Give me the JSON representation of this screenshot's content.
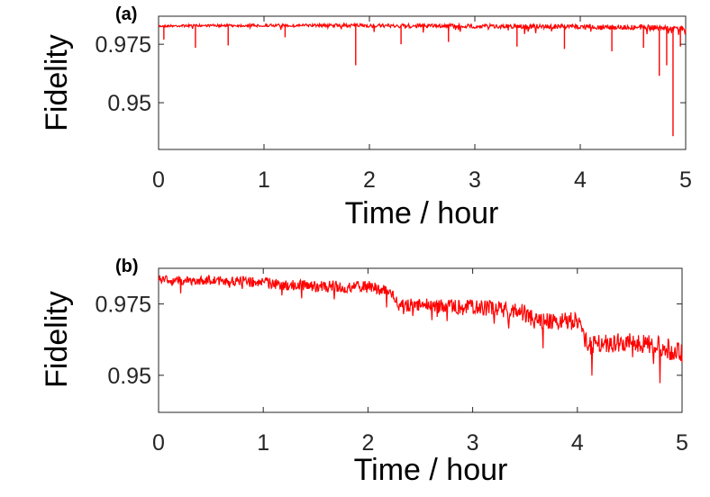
{
  "chart_data": [
    {
      "type": "line",
      "panel_label": "(a)",
      "xlabel": "Time / hour",
      "ylabel": "Fidelity",
      "xlim": [
        0,
        5
      ],
      "ylim": [
        0.93,
        0.987
      ],
      "xticks": [
        0,
        1,
        2,
        3,
        4,
        5
      ],
      "xtick_labels": [
        "0",
        "1",
        "2",
        "3",
        "4",
        "5"
      ],
      "yticks": [
        0.95,
        0.975
      ],
      "ytick_labels": [
        "0.95",
        "0.975"
      ],
      "grid": false,
      "color": "#ff0000",
      "series": [
        {
          "name": "",
          "x": [
            0,
            0.25,
            0.5,
            0.75,
            1,
            1.25,
            1.5,
            1.75,
            2,
            2.25,
            2.5,
            2.75,
            3,
            3.25,
            3.5,
            3.75,
            4,
            4.25,
            4.5,
            4.75,
            5
          ],
          "values": [
            0.983,
            0.9832,
            0.9833,
            0.9833,
            0.9834,
            0.9834,
            0.9834,
            0.9834,
            0.9834,
            0.9833,
            0.9833,
            0.9833,
            0.9832,
            0.9832,
            0.9831,
            0.9831,
            0.983,
            0.9829,
            0.9828,
            0.9826,
            0.9822
          ]
        }
      ],
      "dips": [
        {
          "x": 0.05,
          "y": 0.977
        },
        {
          "x": 0.35,
          "y": 0.9735
        },
        {
          "x": 0.66,
          "y": 0.9745
        },
        {
          "x": 1.2,
          "y": 0.978
        },
        {
          "x": 1.87,
          "y": 0.966
        },
        {
          "x": 2.3,
          "y": 0.975
        },
        {
          "x": 2.75,
          "y": 0.976
        },
        {
          "x": 3.4,
          "y": 0.974
        },
        {
          "x": 3.85,
          "y": 0.973
        },
        {
          "x": 4.3,
          "y": 0.972
        },
        {
          "x": 4.6,
          "y": 0.9735
        },
        {
          "x": 4.75,
          "y": 0.9615
        },
        {
          "x": 4.82,
          "y": 0.966
        },
        {
          "x": 4.88,
          "y": 0.9357
        },
        {
          "x": 4.95,
          "y": 0.974
        }
      ]
    },
    {
      "type": "line",
      "panel_label": "(b)",
      "xlabel": "Time / hour",
      "ylabel": "Fidelity",
      "xlim": [
        0,
        5
      ],
      "ylim": [
        0.937,
        0.9875
      ],
      "xticks": [
        0,
        1,
        2,
        3,
        4,
        5
      ],
      "xtick_labels": [
        "0",
        "1",
        "2",
        "3",
        "4",
        "5"
      ],
      "yticks": [
        0.95,
        0.975
      ],
      "ytick_labels": [
        "0.95",
        "0.975"
      ],
      "grid": false,
      "color": "#ff0000",
      "series": [
        {
          "name": "",
          "x": [
            0,
            0.25,
            0.5,
            0.75,
            1,
            1.25,
            1.5,
            1.75,
            2,
            2.2,
            2.3,
            2.5,
            2.75,
            3,
            3.25,
            3.5,
            3.6,
            3.75,
            4,
            4.1,
            4.25,
            4.5,
            4.75,
            5
          ],
          "values": [
            0.9844,
            0.984,
            0.9842,
            0.9838,
            0.9835,
            0.9826,
            0.9822,
            0.9822,
            0.982,
            0.9805,
            0.976,
            0.9758,
            0.9755,
            0.9755,
            0.9745,
            0.9735,
            0.9705,
            0.9705,
            0.9705,
            0.9625,
            0.9625,
            0.9635,
            0.9625,
            0.9595
          ]
        }
      ]
    }
  ]
}
